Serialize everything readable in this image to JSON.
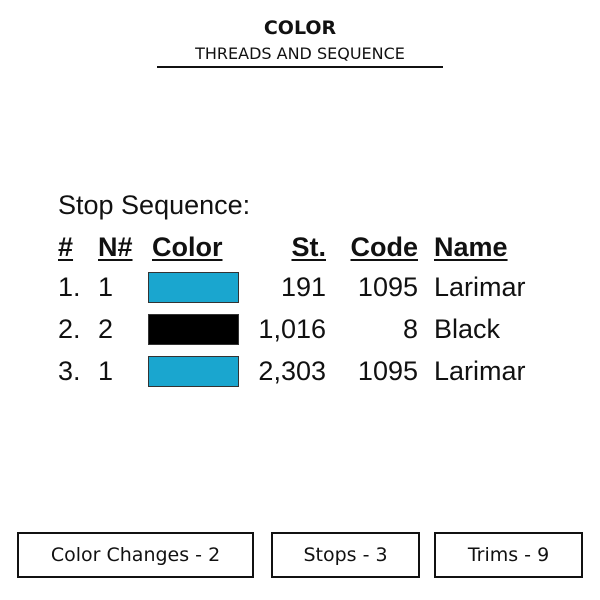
{
  "header": {
    "title": "COLOR",
    "subtitle": "THREADS AND SEQUENCE"
  },
  "section_title": "Stop Sequence:",
  "columns": [
    "#",
    "N#",
    "Color",
    "St.",
    "Code",
    "Name"
  ],
  "rows": [
    {
      "num": "1.",
      "needle": "1",
      "color": "#1aa6cf",
      "stitches": "191",
      "code": "1095",
      "name": "Larimar"
    },
    {
      "num": "2.",
      "needle": "2",
      "color": "#000000",
      "stitches": "1,016",
      "code": "8",
      "name": "Black"
    },
    {
      "num": "3.",
      "needle": "1",
      "color": "#1aa6cf",
      "stitches": "2,303",
      "code": "1095",
      "name": "Larimar"
    }
  ],
  "summary": {
    "color_changes": "Color Changes - 2",
    "stops": "Stops - 3",
    "trims": "Trims - 9"
  }
}
